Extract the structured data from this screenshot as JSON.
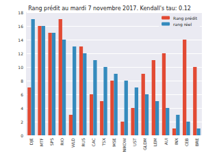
{
  "chart_data": {
    "type": "bar",
    "title": "Rang prédit au mardi 7 novembre 2017. Kendall's tau: 0.12",
    "categories": [
      "DJE",
      "MTF",
      "SPS",
      "RIO",
      "WLD",
      "RUS",
      "CAC",
      "TSX",
      "MSE",
      "NIKOW",
      "UST",
      "GLDM",
      "LEM",
      "AUI",
      "INX",
      "CEB",
      "BRE"
    ],
    "series": [
      {
        "name": "Rang prédit",
        "color": "#e24a33",
        "values": [
          7,
          16,
          15,
          17,
          3,
          13,
          6,
          5,
          8,
          2,
          4,
          9,
          11,
          12,
          1,
          14,
          10
        ]
      },
      {
        "name": "rang réel",
        "color": "#348abd",
        "values": [
          17,
          16,
          15,
          14,
          13,
          12,
          11,
          10,
          9,
          8,
          7,
          6,
          5,
          4,
          3,
          2,
          1
        ]
      }
    ],
    "ylim": [
      0,
      18
    ],
    "yticks": [
      0,
      2,
      4,
      6,
      8,
      10,
      12,
      14,
      16,
      18
    ],
    "grid": true,
    "legend": "upper right"
  }
}
